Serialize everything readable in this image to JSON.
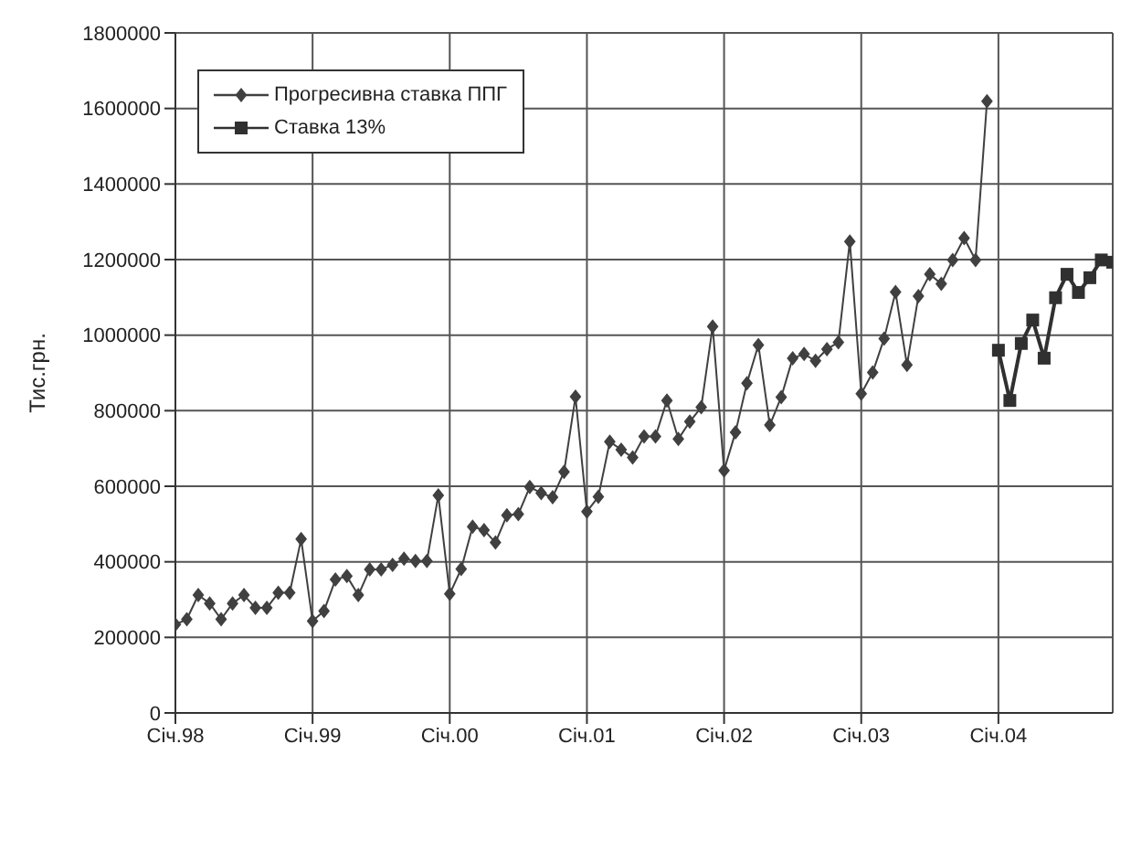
{
  "chart_data": {
    "type": "line",
    "ylabel": "Тис.грн.",
    "ylim": [
      0,
      1800000
    ],
    "yticks": [
      0,
      200000,
      400000,
      600000,
      800000,
      1000000,
      1200000,
      1400000,
      1600000,
      1800000
    ],
    "xlim": [
      "1998-01",
      "2004-11"
    ],
    "xticks": [
      {
        "value": "1998-01",
        "label": "Січ.98"
      },
      {
        "value": "1999-01",
        "label": "Січ.99"
      },
      {
        "value": "2000-01",
        "label": "Січ.00"
      },
      {
        "value": "2001-01",
        "label": "Січ.01"
      },
      {
        "value": "2002-01",
        "label": "Січ.02"
      },
      {
        "value": "2003-01",
        "label": "Січ.03"
      },
      {
        "value": "2004-01",
        "label": "Січ.04"
      }
    ],
    "grid": true,
    "legend": "top left",
    "line_style": "solid",
    "series": [
      {
        "name": "Прогресивна ставка ППГ",
        "color": "#404040",
        "marker": "diamond",
        "x": [
          "1998-01",
          "1998-02",
          "1998-03",
          "1998-04",
          "1998-05",
          "1998-06",
          "1998-07",
          "1998-08",
          "1998-09",
          "1998-10",
          "1998-11",
          "1998-12",
          "1999-01",
          "1999-02",
          "1999-03",
          "1999-04",
          "1999-05",
          "1999-06",
          "1999-07",
          "1999-08",
          "1999-09",
          "1999-10",
          "1999-11",
          "1999-12",
          "2000-01",
          "2000-02",
          "2000-03",
          "2000-04",
          "2000-05",
          "2000-06",
          "2000-07",
          "2000-08",
          "2000-09",
          "2000-10",
          "2000-11",
          "2000-12",
          "2001-01",
          "2001-02",
          "2001-03",
          "2001-04",
          "2001-05",
          "2001-06",
          "2001-07",
          "2001-08",
          "2001-09",
          "2001-10",
          "2001-11",
          "2001-12",
          "2002-01",
          "2002-02",
          "2002-03",
          "2002-04",
          "2002-05",
          "2002-06",
          "2002-07",
          "2002-08",
          "2002-09",
          "2002-10",
          "2002-11",
          "2002-12",
          "2003-01",
          "2003-02",
          "2003-03",
          "2003-04",
          "2003-05",
          "2003-06",
          "2003-07",
          "2003-08",
          "2003-09",
          "2003-10",
          "2003-11",
          "2003-12"
        ],
        "values": [
          234000,
          248000,
          312000,
          290000,
          248000,
          290000,
          312000,
          278000,
          278000,
          318000,
          318000,
          460000,
          243000,
          270000,
          353000,
          362000,
          312000,
          380000,
          380000,
          392000,
          408000,
          402000,
          402000,
          576000,
          315000,
          381000,
          493000,
          484000,
          451000,
          523000,
          526000,
          598000,
          582000,
          571000,
          638000,
          837000,
          533000,
          572000,
          718000,
          697000,
          676000,
          732000,
          732000,
          827000,
          725000,
          771000,
          809000,
          1023000,
          642000,
          743000,
          873000,
          974000,
          762000,
          836000,
          939000,
          950000,
          932000,
          963000,
          981000,
          1248000,
          845000,
          901000,
          991000,
          1114000,
          921000,
          1103000,
          1161000,
          1136000,
          1199000,
          1257000,
          1199000,
          1619000
        ]
      },
      {
        "name": "Ставка 13%",
        "color": "#303030",
        "marker": "square",
        "x": [
          "2004-01",
          "2004-02",
          "2004-03",
          "2004-04",
          "2004-05",
          "2004-06",
          "2004-07",
          "2004-08",
          "2004-09",
          "2004-10",
          "2004-11"
        ],
        "values": [
          960000,
          827000,
          978000,
          1040000,
          939000,
          1099000,
          1161000,
          1113000,
          1152000,
          1199000,
          1193000
        ]
      }
    ]
  }
}
